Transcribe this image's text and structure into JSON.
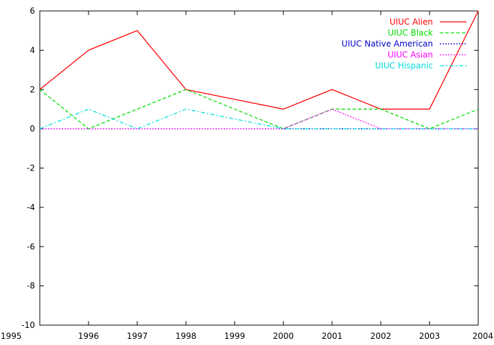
{
  "chart_data": {
    "type": "line",
    "title": "",
    "xlabel": "",
    "ylabel": "",
    "x": [
      1995,
      1996,
      1997,
      1998,
      1999,
      2000,
      2001,
      2002,
      2003,
      2004
    ],
    "xlim": [
      1995,
      2004
    ],
    "ylim": [
      -10,
      6
    ],
    "xticks": [
      "1995",
      "1996",
      "1997",
      "1998",
      "1999",
      "2000",
      "2001",
      "2002",
      "2003",
      "2004"
    ],
    "yticks": [
      "-10",
      "-8",
      "-6",
      "-4",
      "-2",
      "0",
      "2",
      "4",
      "6"
    ],
    "grid": false,
    "legend_position": "top-right",
    "series": [
      {
        "name": "UIUC Alien",
        "color": "#ff0000",
        "dash": "solid",
        "values": [
          2,
          4,
          5,
          2,
          1.5,
          1,
          2,
          1,
          1,
          6
        ]
      },
      {
        "name": "UIUC Black",
        "color": "#00dd00",
        "dash": "dashed",
        "values": [
          2,
          0,
          1,
          2,
          1,
          0,
          1,
          1,
          0,
          1
        ]
      },
      {
        "name": "UIUC Native American",
        "color": "#0000cc",
        "dash": "dotted",
        "values": [
          0,
          0,
          0,
          0,
          0,
          0,
          0,
          0,
          0,
          0
        ]
      },
      {
        "name": "UIUC Asian",
        "color": "#ff00ff",
        "dash": "dotted",
        "values": [
          0,
          0,
          0,
          0,
          0,
          0,
          1,
          0,
          0,
          0
        ]
      },
      {
        "name": "UIUC Hispanic",
        "color": "#00dddd",
        "dash": "dashdot",
        "values": [
          0,
          1,
          0,
          1,
          0.5,
          0,
          0,
          0,
          0,
          0
        ]
      }
    ]
  }
}
